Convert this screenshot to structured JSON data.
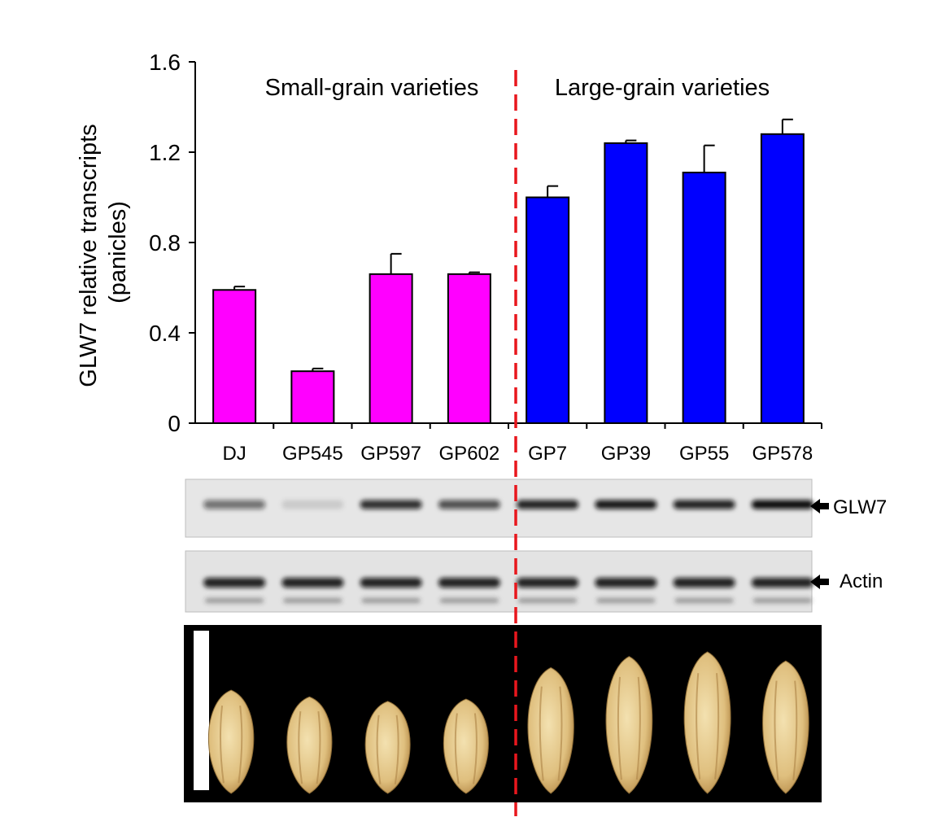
{
  "chart_data": {
    "type": "bar",
    "categories": [
      "DJ",
      "GP545",
      "GP597",
      "GP602",
      "GP7",
      "GP39",
      "GP55",
      "GP578"
    ],
    "values": [
      0.59,
      0.23,
      0.66,
      0.66,
      1.0,
      1.24,
      1.11,
      1.28
    ],
    "errors": [
      0.015,
      0.012,
      0.09,
      0.008,
      0.05,
      0.012,
      0.12,
      0.065
    ],
    "group_of": [
      0,
      0,
      0,
      0,
      1,
      1,
      1,
      1
    ],
    "groups": [
      {
        "label": "Small-grain varieties",
        "color": "#ff00ff"
      },
      {
        "label": "Large-grain varieties",
        "color": "#0000ff"
      }
    ],
    "ylabel_lines": [
      "GLW7 relative transcripts",
      "(panicles)"
    ],
    "yticks": [
      0,
      0.4,
      0.8,
      1.2,
      1.6
    ],
    "ytick_labels": [
      "0",
      "0.4",
      "0.8",
      "1.2",
      "1.6"
    ],
    "ylim": [
      0,
      1.6
    ],
    "divider_color": "#e8171d",
    "grid": false
  },
  "blots": [
    {
      "label": "GLW7",
      "band_intensity": [
        0.55,
        0.12,
        0.85,
        0.7,
        0.9,
        0.95,
        0.9,
        1.0
      ]
    },
    {
      "label": "Actin",
      "band_intensity": [
        0.9,
        0.9,
        0.9,
        0.9,
        0.9,
        0.9,
        0.9,
        0.9
      ]
    }
  ],
  "grains": {
    "background": "#000000",
    "relative_size": [
      0.92,
      0.86,
      0.82,
      0.84,
      1.12,
      1.22,
      1.26,
      1.18
    ]
  }
}
